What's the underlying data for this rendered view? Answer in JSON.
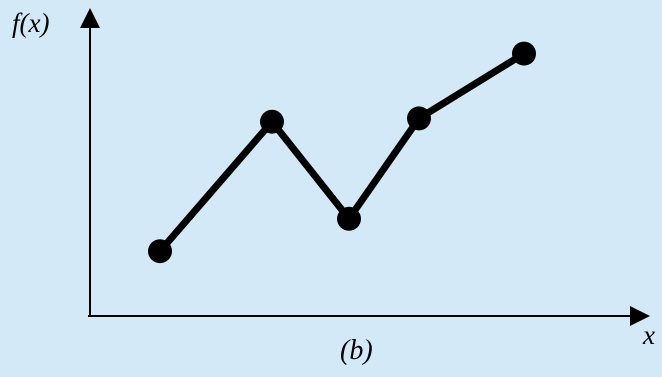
{
  "diagram": {
    "y_axis_label": "f(x)",
    "x_axis_label": "x",
    "caption": "(b)",
    "line_color": "#000000",
    "background_color": "#d3e9f8"
  },
  "chart_data": {
    "type": "line",
    "xlabel": "x",
    "ylabel": "f(x)",
    "x": [
      1.0,
      2.6,
      3.7,
      4.7,
      6.2
    ],
    "values": [
      1.0,
      5.0,
      2.0,
      5.1,
      7.1
    ],
    "xlim": [
      0,
      8
    ],
    "ylim": [
      -1,
      8.2
    ],
    "grid": false
  }
}
